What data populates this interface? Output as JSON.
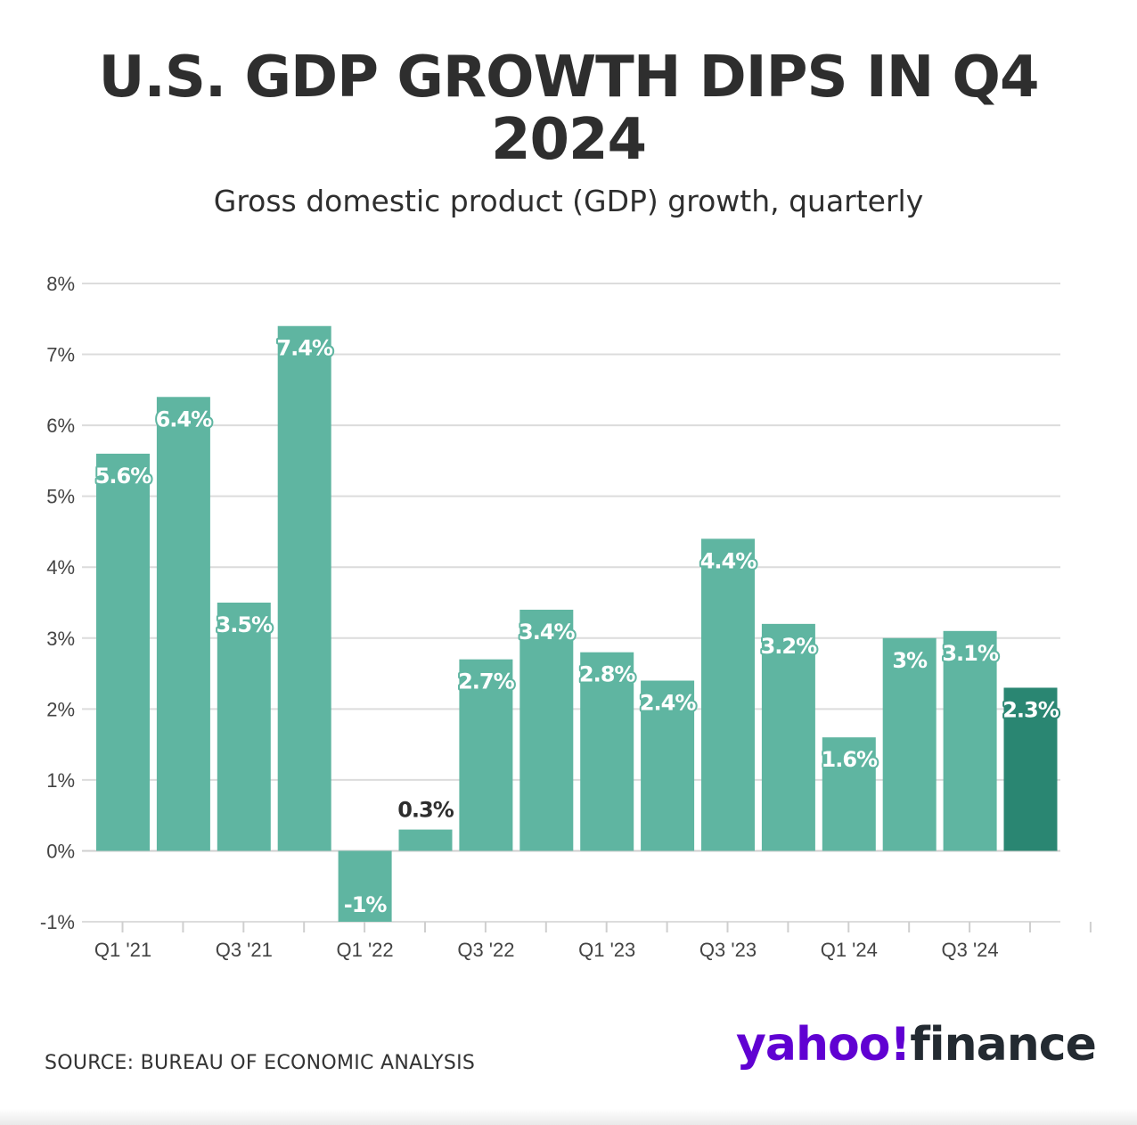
{
  "header": {
    "title_line1": "U.S. GDP GROWTH DIPS IN Q4",
    "title_line2": "2024",
    "subtitle": "Gross domestic product (GDP) growth, quarterly"
  },
  "footer": {
    "source": "SOURCE: BUREAU OF ECONOMIC ANALYSIS",
    "logo_yahoo": "yahoo",
    "logo_exclaim": "!",
    "logo_finance": "finance"
  },
  "colors": {
    "bar": "#5fb5a1",
    "bar_highlight": "#2a8672",
    "grid": "#dcdcdc",
    "label_outside": "#2e2e2e"
  },
  "chart_data": {
    "type": "bar",
    "title": "U.S. GDP GROWTH DIPS IN Q4 2024",
    "subtitle": "Gross domestic product (GDP) growth, quarterly",
    "categories": [
      "Q1 '21",
      "Q2 '21",
      "Q3 '21",
      "Q4 '21",
      "Q1 '22",
      "Q2 '22",
      "Q3 '22",
      "Q4 '22",
      "Q1 '23",
      "Q2 '23",
      "Q3 '23",
      "Q4 '23",
      "Q1 '24",
      "Q2 '24",
      "Q3 '24",
      "Q4 '24"
    ],
    "values": [
      5.6,
      6.4,
      3.5,
      7.4,
      -1,
      0.3,
      2.7,
      3.4,
      2.8,
      2.4,
      4.4,
      3.2,
      1.6,
      3,
      3.1,
      2.3
    ],
    "value_labels": [
      "5.6%",
      "6.4%",
      "3.5%",
      "7.4%",
      "-1%",
      "0.3%",
      "2.7%",
      "3.4%",
      "2.8%",
      "2.4%",
      "4.4%",
      "3.2%",
      "1.6%",
      "3%",
      "3.1%",
      "2.3%"
    ],
    "highlight": "Q4 '24",
    "ylim": [
      -1,
      8
    ],
    "yticks": [
      -1,
      0,
      1,
      2,
      3,
      4,
      5,
      6,
      7,
      8
    ],
    "ytick_labels": [
      "-1%",
      "0%",
      "1%",
      "2%",
      "3%",
      "4%",
      "5%",
      "6%",
      "7%",
      "8%"
    ],
    "xtick_labels": [
      "Q1 '21",
      "Q3 '21",
      "Q1 '22",
      "Q3 '22",
      "Q1 '23",
      "Q3 '23",
      "Q1 '24",
      "Q3 '24"
    ],
    "grid": true,
    "xlabel": "",
    "ylabel": ""
  }
}
